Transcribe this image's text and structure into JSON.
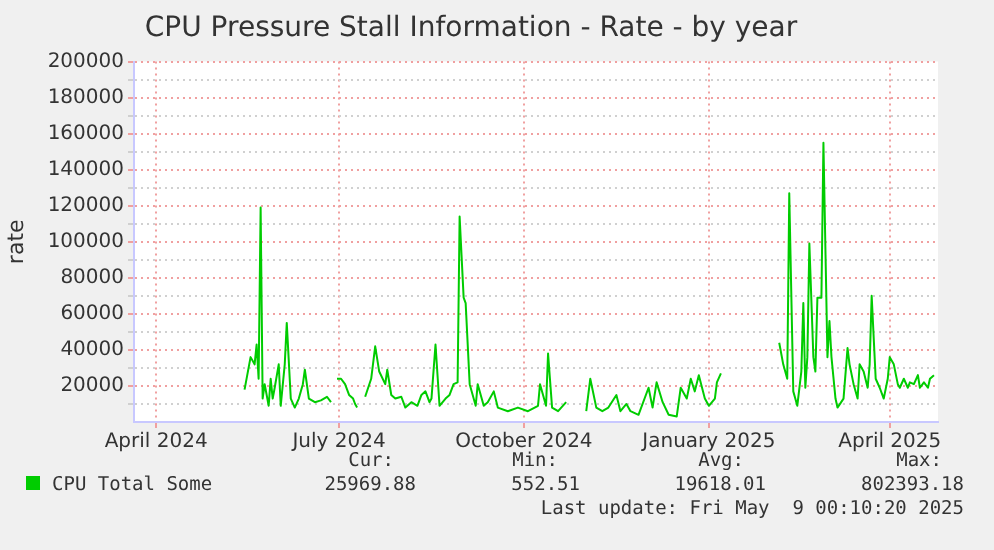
{
  "chart_data": {
    "type": "line",
    "title": "CPU Pressure Stall Information - Rate - by year",
    "ylabel": "rate",
    "x": [
      "2024-05-15",
      "2024-05-18",
      "2024-05-20",
      "2024-05-21",
      "2024-05-22",
      "2024-05-23",
      "2024-05-24",
      "2024-05-25",
      "2024-05-27",
      "2024-05-28",
      "2024-05-29",
      "2024-05-30",
      "2024-06-01",
      "2024-06-02",
      "2024-06-04",
      "2024-06-05",
      "2024-06-07",
      "2024-06-09",
      "2024-06-11",
      "2024-06-13",
      "2024-06-14",
      "2024-06-16",
      "2024-06-19",
      "2024-06-22",
      "2024-06-25",
      "2024-06-27",
      "2024-06-28",
      "2024-06-30",
      "2024-07-02",
      "2024-07-04",
      "2024-07-06",
      "2024-07-08",
      "2024-07-09",
      "2024-07-10",
      "2024-07-12",
      "2024-07-14",
      "2024-07-17",
      "2024-07-19",
      "2024-07-21",
      "2024-07-24",
      "2024-07-25",
      "2024-07-27",
      "2024-07-29",
      "2024-08-01",
      "2024-08-03",
      "2024-08-06",
      "2024-08-09",
      "2024-08-11",
      "2024-08-13",
      "2024-08-15",
      "2024-08-16",
      "2024-08-18",
      "2024-08-20",
      "2024-08-23",
      "2024-08-25",
      "2024-08-27",
      "2024-08-29",
      "2024-08-30",
      "2024-09-01",
      "2024-09-02",
      "2024-09-04",
      "2024-09-07",
      "2024-09-08",
      "2024-09-11",
      "2024-09-13",
      "2024-09-16",
      "2024-09-18",
      "2024-09-23",
      "2024-09-28",
      "2024-10-03",
      "2024-10-08",
      "2024-10-09",
      "2024-10-12",
      "2024-10-13",
      "2024-10-15",
      "2024-10-18",
      "2024-10-22",
      "2024-10-27",
      "2024-11-01",
      "2024-11-03",
      "2024-11-06",
      "2024-11-09",
      "2024-11-12",
      "2024-11-16",
      "2024-11-18",
      "2024-11-21",
      "2024-11-23",
      "2024-11-27",
      "2024-12-02",
      "2024-12-04",
      "2024-12-06",
      "2024-12-09",
      "2024-12-12",
      "2024-12-16",
      "2024-12-18",
      "2024-12-21",
      "2024-12-23",
      "2024-12-25",
      "2024-12-27",
      "2024-12-30",
      "2025-01-01",
      "2025-01-04",
      "2025-01-05",
      "2025-01-07",
      "2025-01-20",
      "2025-02-05",
      "2025-02-07",
      "2025-02-09",
      "2025-02-10",
      "2025-02-12",
      "2025-02-13",
      "2025-02-14",
      "2025-02-16",
      "2025-02-17",
      "2025-02-18",
      "2025-02-19",
      "2025-02-20",
      "2025-02-22",
      "2025-02-23",
      "2025-02-24",
      "2025-02-26",
      "2025-02-27",
      "2025-03-01",
      "2025-03-02",
      "2025-03-03",
      "2025-03-05",
      "2025-03-06",
      "2025-03-09",
      "2025-03-11",
      "2025-03-12",
      "2025-03-14",
      "2025-03-16",
      "2025-03-17",
      "2025-03-19",
      "2025-03-21",
      "2025-03-22",
      "2025-03-23",
      "2025-03-25",
      "2025-03-27",
      "2025-03-29",
      "2025-03-31",
      "2025-04-01",
      "2025-04-03",
      "2025-04-05",
      "2025-04-06",
      "2025-04-08",
      "2025-04-10",
      "2025-04-11",
      "2025-04-13",
      "2025-04-15",
      "2025-04-16",
      "2025-04-18",
      "2025-04-20",
      "2025-04-21",
      "2025-04-23"
    ],
    "series": [
      {
        "name": "CPU Total Some",
        "color": "#00cc00",
        "values": [
          18000,
          36000,
          32000,
          43000,
          24000,
          119000,
          13000,
          21000,
          9000,
          24000,
          13000,
          19000,
          32000,
          9000,
          32000,
          55000,
          13000,
          8000,
          13000,
          21000,
          29000,
          13000,
          11000,
          12000,
          14000,
          11000,
          null,
          24000,
          24000,
          21000,
          15000,
          13000,
          10000,
          8000,
          null,
          14000,
          24000,
          42000,
          28000,
          21000,
          29000,
          15000,
          13000,
          14000,
          8000,
          11000,
          9000,
          15000,
          17000,
          11000,
          13000,
          43000,
          9000,
          13000,
          15000,
          21000,
          22000,
          114000,
          69000,
          66000,
          21000,
          9000,
          21000,
          9000,
          11000,
          17000,
          8000,
          6000,
          8000,
          6000,
          9000,
          21000,
          9000,
          38000,
          8000,
          6000,
          11000,
          null,
          6000,
          24000,
          8000,
          6000,
          8000,
          15000,
          6000,
          10000,
          6000,
          4000,
          19000,
          8000,
          22000,
          11000,
          4000,
          3000,
          19000,
          13000,
          24000,
          17000,
          26000,
          13000,
          9000,
          13000,
          22000,
          27000,
          null,
          44000,
          32000,
          24000,
          127000,
          17000,
          13000,
          9000,
          28000,
          66000,
          19000,
          36000,
          99000,
          36000,
          28000,
          69000,
          69000,
          155000,
          36000,
          56000,
          36000,
          13000,
          8000,
          13000,
          41000,
          32000,
          21000,
          13000,
          32000,
          28000,
          19000,
          32000,
          70000,
          24000,
          19000,
          13000,
          24000,
          36000,
          32000,
          21000,
          19000,
          24000,
          19000,
          22000,
          21000,
          26000,
          19000,
          22000,
          19000,
          24000,
          26000
        ]
      }
    ],
    "xlim": [
      "2024-03-21",
      "2025-04-25"
    ],
    "xticks": [
      {
        "value": "2024-04-01",
        "label": "April 2024"
      },
      {
        "value": "2024-07-01",
        "label": "July 2024"
      },
      {
        "value": "2024-10-01",
        "label": "October 2024"
      },
      {
        "value": "2025-01-01",
        "label": "January 2025"
      },
      {
        "value": "2025-04-01",
        "label": "April 2025"
      }
    ],
    "ylim": [
      0,
      200000
    ],
    "yticks": [
      {
        "value": 10000,
        "label": null
      },
      20000,
      {
        "value": 30000,
        "label": null
      },
      40000,
      {
        "value": 50000,
        "label": null
      },
      60000,
      {
        "value": 70000,
        "label": null
      },
      80000,
      {
        "value": 90000,
        "label": null
      },
      100000,
      {
        "value": 110000,
        "label": null
      },
      120000,
      {
        "value": 130000,
        "label": null
      },
      140000,
      {
        "value": 150000,
        "label": null
      },
      160000,
      {
        "value": 170000,
        "label": null
      },
      180000,
      {
        "value": 190000,
        "label": null
      },
      200000
    ],
    "grid": true,
    "legend": "bottom",
    "marker": "none",
    "annotations": [
      "Cur:",
      "25969.88",
      "Min:",
      "552.51",
      "Avg:",
      "19618.01",
      "Max:",
      "802393.18",
      "Last update: Fri May  9 00:10:20 2025"
    ]
  }
}
